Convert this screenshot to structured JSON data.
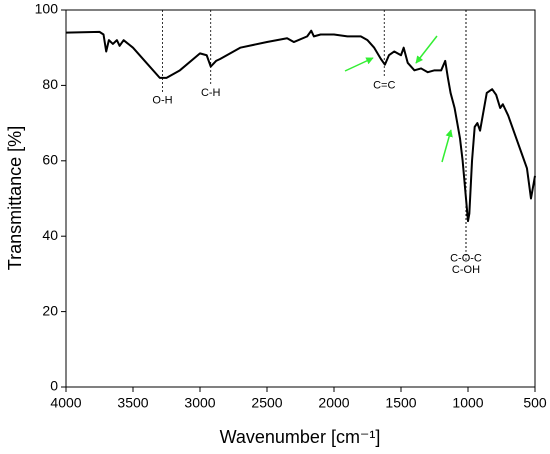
{
  "chart_data": {
    "type": "line",
    "xlabel": "Wavenumber [cm⁻¹]",
    "ylabel": "Transmittance [%]",
    "color": "#000000",
    "x": [
      4000,
      3750,
      3720,
      3700,
      3680,
      3650,
      3620,
      3600,
      3570,
      3500,
      3400,
      3300,
      3250,
      3150,
      3000,
      2950,
      2920,
      2880,
      2850,
      2800,
      2700,
      2500,
      2350,
      2300,
      2200,
      2170,
      2150,
      2100,
      2000,
      1900,
      1800,
      1750,
      1700,
      1650,
      1620,
      1590,
      1550,
      1500,
      1480,
      1450,
      1400,
      1350,
      1300,
      1250,
      1200,
      1170,
      1150,
      1130,
      1100,
      1080,
      1060,
      1040,
      1020,
      1000,
      990,
      970,
      950,
      930,
      910,
      890,
      860,
      820,
      790,
      760,
      740,
      700,
      650,
      600,
      560,
      530,
      510,
      500
    ],
    "values": [
      94,
      94.2,
      93.5,
      89,
      92,
      91,
      92,
      90.5,
      92,
      90,
      86,
      82,
      82,
      84,
      88.5,
      88,
      85,
      86.5,
      87,
      88,
      90,
      91.5,
      92.5,
      91.5,
      93,
      94.5,
      93,
      93.5,
      93.5,
      93,
      93,
      92,
      90,
      87,
      85.5,
      88,
      89,
      88,
      90,
      86,
      84,
      84.5,
      83.5,
      84,
      84,
      86.5,
      82,
      78,
      74,
      70,
      66,
      60,
      52,
      44,
      46,
      60,
      69,
      70,
      68,
      72,
      78,
      79,
      77.5,
      74,
      75,
      72,
      67,
      62,
      58,
      50,
      54,
      56
    ],
    "xlim": [
      4000,
      500
    ],
    "xticks": [
      4000,
      3500,
      3000,
      2500,
      2000,
      1500,
      1000,
      500
    ],
    "ylim": [
      0,
      100
    ],
    "yticks": [
      0,
      20,
      40,
      60,
      80,
      100
    ],
    "annotations": [
      {
        "text": "O-H",
        "x": 3280,
        "y": 76
      },
      {
        "text": "C-H",
        "x": 2920,
        "y": 78
      },
      {
        "text": "C=C",
        "x": 1625,
        "y": 80
      },
      {
        "text": "C-O-C",
        "x": 1015,
        "y": 34
      },
      {
        "text": "C-OH",
        "x": 1015,
        "y": 31
      }
    ]
  }
}
